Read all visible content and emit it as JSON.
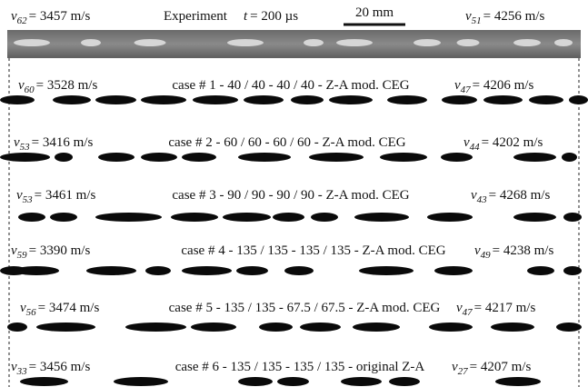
{
  "velocity_symbol": "v",
  "experiment": {
    "left": {
      "sub": "62",
      "text": "= 3457 m/s"
    },
    "title": "Experiment",
    "time_symbol": "t",
    "time": "= 200 µs",
    "scale": "20 mm",
    "right": {
      "sub": "51",
      "text": "= 4256 m/s"
    }
  },
  "rows": [
    {
      "left": {
        "sub": "60",
        "text": "= 3528 m/s"
      },
      "case": "case # 1 - 40 / 40 - 40 / 40 - Z-A mod. CEG",
      "right": {
        "sub": "47",
        "text": "= 4206 m/s"
      }
    },
    {
      "left": {
        "sub": "53",
        "text": "= 3416 m/s"
      },
      "case": "case # 2 - 60 / 60 - 60 / 60 - Z-A mod. CEG",
      "right": {
        "sub": "44",
        "text": "= 4202 m/s"
      }
    },
    {
      "left": {
        "sub": "53",
        "text": "= 3461 m/s"
      },
      "case": "case # 3 - 90 / 90 - 90 / 90 - Z-A mod. CEG",
      "right": {
        "sub": "43",
        "text": "= 4268 m/s"
      }
    },
    {
      "left": {
        "sub": "59",
        "text": "= 3390 m/s"
      },
      "case": "case # 4 - 135 / 135 - 135 / 135 - Z-A mod. CEG",
      "right": {
        "sub": "49",
        "text": "= 4238 m/s"
      }
    },
    {
      "left": {
        "sub": "56",
        "text": "= 3474 m/s"
      },
      "case": "case # 5 - 135 / 135 - 67.5 / 67.5 - Z-A mod. CEG",
      "right": {
        "sub": "47",
        "text": "= 4217 m/s"
      }
    },
    {
      "left": {
        "sub": "33",
        "text": "= 3456 m/s"
      },
      "case": "case # 6 - 135 / 135 - 135 / 135 - original Z-A",
      "right": {
        "sub": "27",
        "text": "= 4207 m/s"
      }
    }
  ]
}
